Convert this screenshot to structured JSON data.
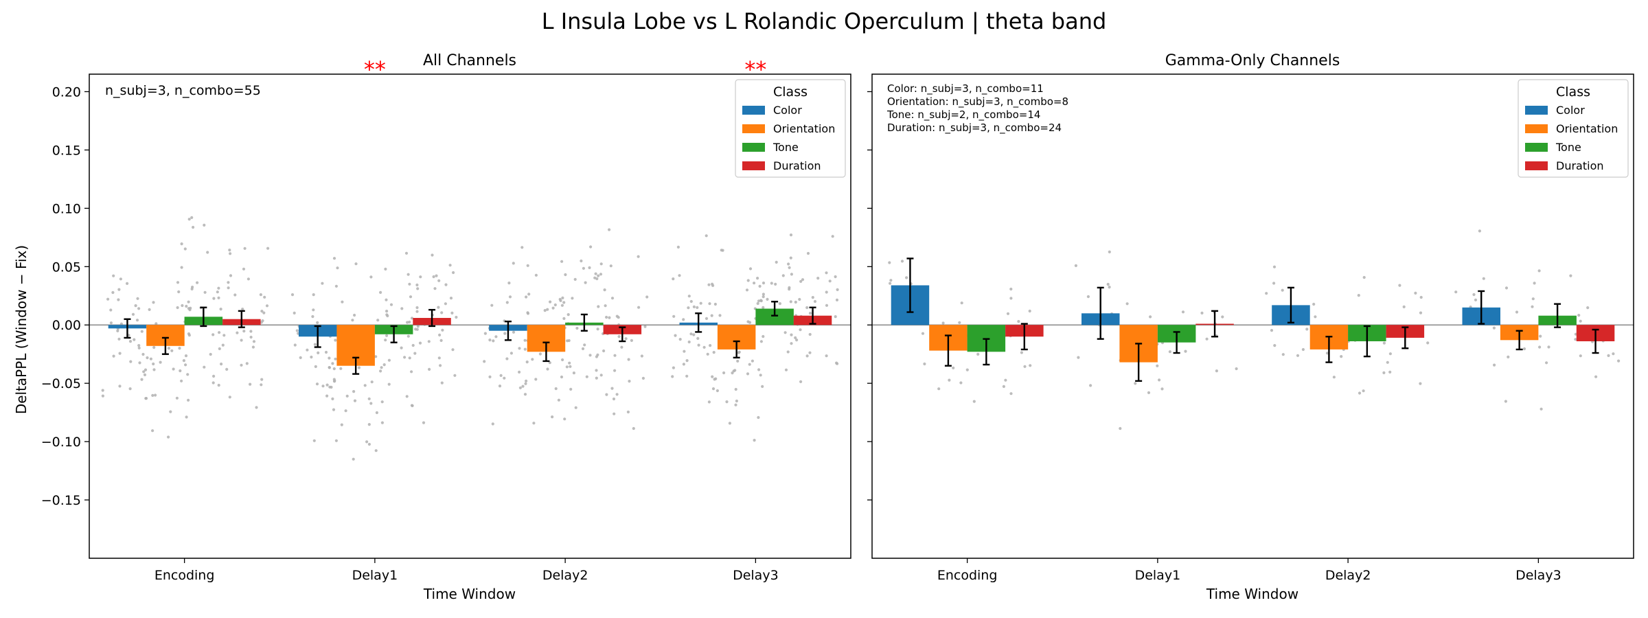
{
  "figure": {
    "title": "L Insula Lobe vs L Rolandic Operculum  |  theta band",
    "ylabel": "DeltaPPL (Window − Fix)"
  },
  "colors": {
    "Color": "#1f77b4",
    "Orientation": "#ff7f0e",
    "Tone": "#2ca02c",
    "Duration": "#d62728",
    "scatter": "#b0b0b0",
    "significance": "#ff0000"
  },
  "chart_data": [
    {
      "type": "bar",
      "title": "All Channels",
      "xlabel": "Time Window",
      "ylabel": "DeltaPPL (Window − Fix)",
      "categories": [
        "Encoding",
        "Delay1",
        "Delay2",
        "Delay3"
      ],
      "ylim": [
        -0.2,
        0.215
      ],
      "yticks": [
        -0.15,
        -0.1,
        -0.05,
        0.0,
        0.05,
        0.1,
        0.15,
        0.2
      ],
      "ytick_labels": [
        "−0.15",
        "−0.10",
        "−0.05",
        "0.00",
        "0.05",
        "0.10",
        "0.15",
        "0.20"
      ],
      "legend": {
        "title": "Class",
        "position": "top-right"
      },
      "annotation": "n_subj=3, n_combo=55",
      "significance": [
        {
          "category": "Delay1",
          "label": "**"
        },
        {
          "category": "Delay3",
          "label": "**"
        }
      ],
      "series": [
        {
          "name": "Color",
          "values": [
            -0.003,
            -0.01,
            -0.005,
            0.002
          ],
          "errors": [
            0.008,
            0.009,
            0.008,
            0.008
          ]
        },
        {
          "name": "Orientation",
          "values": [
            -0.018,
            -0.035,
            -0.023,
            -0.021
          ],
          "errors": [
            0.007,
            0.007,
            0.008,
            0.007
          ]
        },
        {
          "name": "Tone",
          "values": [
            0.007,
            -0.008,
            0.002,
            0.014
          ],
          "errors": [
            0.008,
            0.007,
            0.007,
            0.006
          ]
        },
        {
          "name": "Duration",
          "values": [
            0.005,
            0.006,
            -0.008,
            0.008
          ],
          "errors": [
            0.007,
            0.007,
            0.006,
            0.007
          ]
        }
      ]
    },
    {
      "type": "bar",
      "title": "Gamma-Only Channels",
      "xlabel": "Time Window",
      "categories": [
        "Encoding",
        "Delay1",
        "Delay2",
        "Delay3"
      ],
      "ylim": [
        -0.2,
        0.215
      ],
      "legend": {
        "title": "Class",
        "position": "top-right"
      },
      "annotation_lines": [
        "Color: n_subj=3, n_combo=11",
        "Orientation: n_subj=3, n_combo=8",
        "Tone: n_subj=2, n_combo=14",
        "Duration: n_subj=3, n_combo=24"
      ],
      "series": [
        {
          "name": "Color",
          "values": [
            0.034,
            0.01,
            0.017,
            0.015
          ],
          "errors": [
            0.023,
            0.022,
            0.015,
            0.014
          ]
        },
        {
          "name": "Orientation",
          "values": [
            -0.022,
            -0.032,
            -0.021,
            -0.013
          ],
          "errors": [
            0.013,
            0.016,
            0.011,
            0.008
          ]
        },
        {
          "name": "Tone",
          "values": [
            -0.023,
            -0.015,
            -0.014,
            0.008
          ],
          "errors": [
            0.011,
            0.009,
            0.013,
            0.01
          ]
        },
        {
          "name": "Duration",
          "values": [
            -0.01,
            0.001,
            -0.011,
            -0.014
          ],
          "errors": [
            0.011,
            0.011,
            0.009,
            0.01
          ]
        }
      ]
    }
  ]
}
